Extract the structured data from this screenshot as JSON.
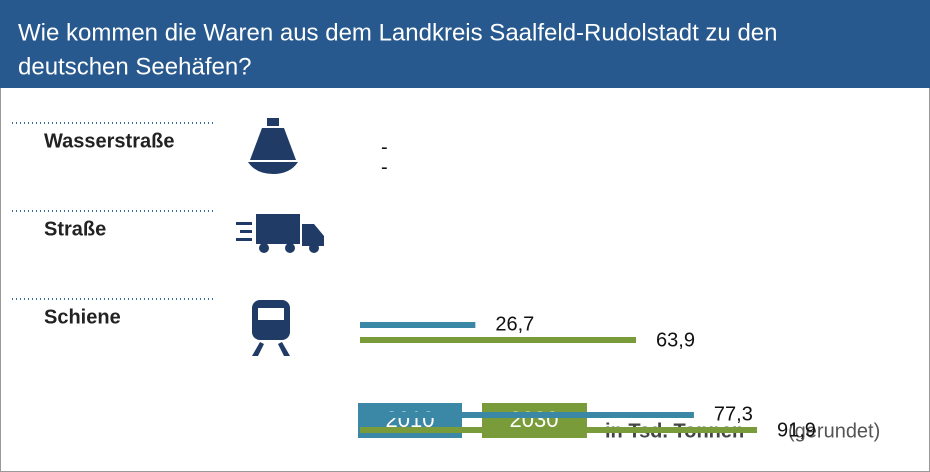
{
  "chart_data": {
    "type": "bar",
    "orientation": "horizontal",
    "title": "Wie kommen die Waren aus dem Landkreis Saalfeld-Rudolstadt zu den deutschen Seehäfen?",
    "title_lines": [
      "Wie kommen die Waren aus dem Landkreis Saalfeld-Rudolstadt zu den",
      "deutschen Seehäfen?"
    ],
    "categories": [
      "Wasserstraße",
      "Straße",
      "Schiene"
    ],
    "series": [
      {
        "name": "2010",
        "color": "#3b87a6",
        "values": [
          null,
          26.7,
          77.3
        ],
        "value_labels": [
          "-",
          "26,7",
          "77,3"
        ]
      },
      {
        "name": "2030",
        "color": "#7a9b3a",
        "values": [
          null,
          63.9,
          91.9
        ],
        "value_labels": [
          "-",
          "63,9",
          "91,9"
        ]
      }
    ],
    "unit": "in Tsd. Tonnen",
    "unit_note": "(gerundet)"
  }
}
